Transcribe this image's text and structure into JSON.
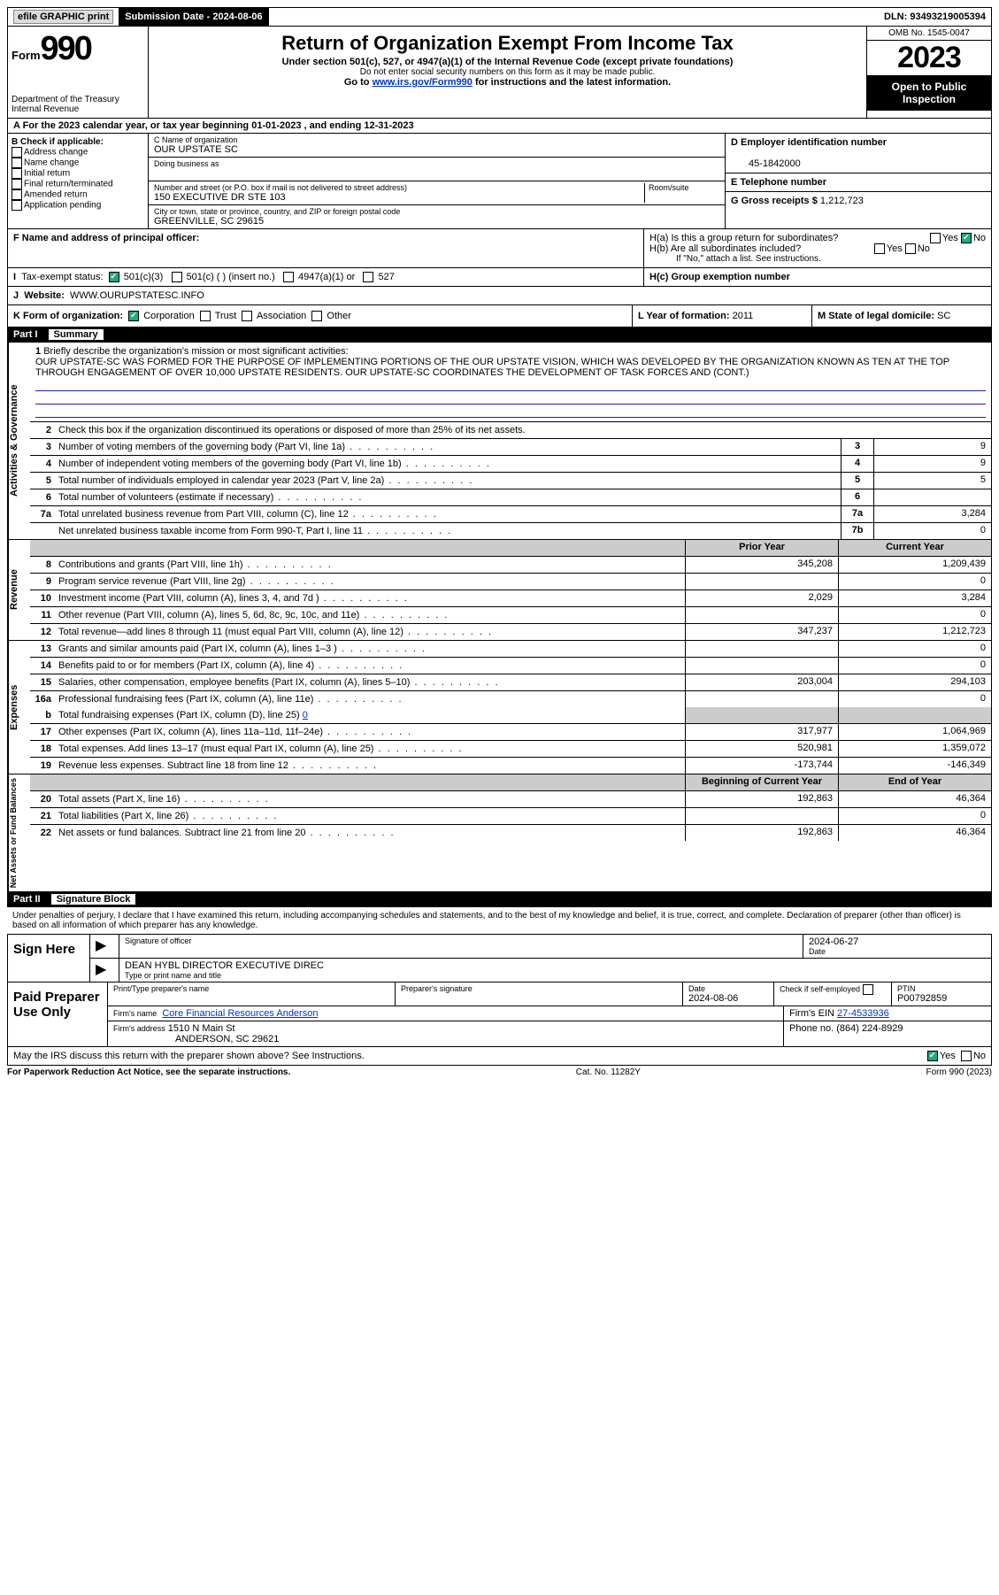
{
  "topbar": {
    "efile": "efile GRAPHIC print",
    "sub_label": "Submission Date -",
    "sub_date": "2024-08-06",
    "dln_label": "DLN:",
    "dln": "93493219005394"
  },
  "header": {
    "form_small": "Form",
    "form_num": "990",
    "dept": "Department of the Treasury",
    "irs": "Internal Revenue",
    "title": "Return of Organization Exempt From Income Tax",
    "sub1": "Under section 501(c), 527, or 4947(a)(1) of the Internal Revenue Code (except private foundations)",
    "sub2": "Do not enter social security numbers on this form as it may be made public.",
    "sub3_pre": "Go to ",
    "sub3_link": "www.irs.gov/Form990",
    "sub3_post": " for instructions and the latest information.",
    "omb": "OMB No. 1545-0047",
    "year": "2023",
    "pub": "Open to Public Inspection"
  },
  "lineA": {
    "label": "A For the 2023 calendar year, or tax year beginning ",
    "begin": "01-01-2023",
    "mid": " , and ending ",
    "end": "12-31-2023"
  },
  "boxB": {
    "title": "B Check if applicable:",
    "opts": [
      "Address change",
      "Name change",
      "Initial return",
      "Final return/terminated",
      "Amended return",
      "Application pending"
    ]
  },
  "boxC": {
    "name_label": "C Name of organization",
    "name": "OUR UPSTATE SC",
    "dba_label": "Doing business as",
    "addr_label": "Number and street (or P.O. box if mail is not delivered to street address)",
    "room_label": "Room/suite",
    "addr": "150 EXECUTIVE DR STE 103",
    "city_label": "City or town, state or province, country, and ZIP or foreign postal code",
    "city": "GREENVILLE, SC  29615"
  },
  "boxD": {
    "label": "D Employer identification number",
    "val": "45-1842000"
  },
  "boxE": {
    "label": "E Telephone number",
    "val": ""
  },
  "boxG": {
    "label": "G Gross receipts $",
    "val": "1,212,723"
  },
  "boxF": {
    "label": "F  Name and address of principal officer:"
  },
  "boxH": {
    "a": "H(a)  Is this a group return for subordinates?",
    "b": "H(b)  Are all subordinates included?",
    "bnote": "If \"No,\" attach a list. See instructions.",
    "c": "H(c)  Group exemption number"
  },
  "yn": {
    "yes": "Yes",
    "no": "No"
  },
  "boxI": {
    "label": "Tax-exempt status:",
    "o1": "501(c)(3)",
    "o2": "501(c) (  ) (insert no.)",
    "o3": "4947(a)(1) or",
    "o4": "527"
  },
  "boxJ": {
    "label": "Website:",
    "val": "WWW.OURUPSTATESC.INFO"
  },
  "boxK": {
    "label": "K Form of organization:",
    "o1": "Corporation",
    "o2": "Trust",
    "o3": "Association",
    "o4": "Other"
  },
  "boxL": {
    "label": "L Year of formation:",
    "val": "2011"
  },
  "boxM": {
    "label": "M State of legal domicile:",
    "val": "SC"
  },
  "part1": {
    "num": "Part I",
    "title": "Summary"
  },
  "q1": {
    "label": "Briefly describe the organization's mission or most significant activities:",
    "text": "OUR UPSTATE-SC WAS FORMED FOR THE PURPOSE OF IMPLEMENTING PORTIONS OF THE OUR UPSTATE VISION, WHICH WAS DEVELOPED BY THE ORGANIZATION KNOWN AS TEN AT THE TOP THROUGH ENGAGEMENT OF OVER 10,000 UPSTATE RESIDENTS. OUR UPSTATE-SC COORDINATES THE DEVELOPMENT OF TASK FORCES AND (CONT.)"
  },
  "q2": "Check this box      if the organization discontinued its operations or disposed of more than 25% of its net assets.",
  "gov_rows": [
    {
      "n": "3",
      "t": "Number of voting members of the governing body (Part VI, line 1a)",
      "cn": "3",
      "v": "9"
    },
    {
      "n": "4",
      "t": "Number of independent voting members of the governing body (Part VI, line 1b)",
      "cn": "4",
      "v": "9"
    },
    {
      "n": "5",
      "t": "Total number of individuals employed in calendar year 2023 (Part V, line 2a)",
      "cn": "5",
      "v": "5"
    },
    {
      "n": "6",
      "t": "Total number of volunteers (estimate if necessary)",
      "cn": "6",
      "v": ""
    },
    {
      "n": "7a",
      "t": "Total unrelated business revenue from Part VIII, column (C), line 12",
      "cn": "7a",
      "v": "3,284"
    },
    {
      "n": "",
      "t": "Net unrelated business taxable income from Form 990-T, Part I, line 11",
      "cn": "7b",
      "v": "0"
    }
  ],
  "col_hdr": {
    "py": "Prior Year",
    "cy": "Current Year"
  },
  "rev_rows": [
    {
      "n": "8",
      "t": "Contributions and grants (Part VIII, line 1h)",
      "py": "345,208",
      "cy": "1,209,439"
    },
    {
      "n": "9",
      "t": "Program service revenue (Part VIII, line 2g)",
      "py": "",
      "cy": "0"
    },
    {
      "n": "10",
      "t": "Investment income (Part VIII, column (A), lines 3, 4, and 7d )",
      "py": "2,029",
      "cy": "3,284"
    },
    {
      "n": "11",
      "t": "Other revenue (Part VIII, column (A), lines 5, 6d, 8c, 9c, 10c, and 11e)",
      "py": "",
      "cy": "0"
    },
    {
      "n": "12",
      "t": "Total revenue—add lines 8 through 11 (must equal Part VIII, column (A), line 12)",
      "py": "347,237",
      "cy": "1,212,723"
    }
  ],
  "exp_rows": [
    {
      "n": "13",
      "t": "Grants and similar amounts paid (Part IX, column (A), lines 1–3 )",
      "py": "",
      "cy": "0"
    },
    {
      "n": "14",
      "t": "Benefits paid to or for members (Part IX, column (A), line 4)",
      "py": "",
      "cy": "0"
    },
    {
      "n": "15",
      "t": "Salaries, other compensation, employee benefits (Part IX, column (A), lines 5–10)",
      "py": "203,004",
      "cy": "294,103"
    },
    {
      "n": "16a",
      "t": "Professional fundraising fees (Part IX, column (A), line 11e)",
      "py": "",
      "cy": "0"
    }
  ],
  "q16b_pre": "Total fundraising expenses (Part IX, column (D), line 25) ",
  "q16b_val": "0",
  "exp_rows2": [
    {
      "n": "17",
      "t": "Other expenses (Part IX, column (A), lines 11a–11d, 11f–24e)",
      "py": "317,977",
      "cy": "1,064,969"
    },
    {
      "n": "18",
      "t": "Total expenses. Add lines 13–17 (must equal Part IX, column (A), line 25)",
      "py": "520,981",
      "cy": "1,359,072"
    },
    {
      "n": "19",
      "t": "Revenue less expenses. Subtract line 18 from line 12",
      "py": "-173,744",
      "cy": "-146,349"
    }
  ],
  "na_hdr": {
    "py": "Beginning of Current Year",
    "cy": "End of Year"
  },
  "na_rows": [
    {
      "n": "20",
      "t": "Total assets (Part X, line 16)",
      "py": "192,863",
      "cy": "46,364"
    },
    {
      "n": "21",
      "t": "Total liabilities (Part X, line 26)",
      "py": "",
      "cy": "0"
    },
    {
      "n": "22",
      "t": "Net assets or fund balances. Subtract line 21 from line 20",
      "py": "192,863",
      "cy": "46,364"
    }
  ],
  "vlabels": {
    "gov": "Activities & Governance",
    "rev": "Revenue",
    "exp": "Expenses",
    "na": "Net Assets or Fund Balances"
  },
  "part2": {
    "num": "Part II",
    "title": "Signature Block"
  },
  "penalty": "Under penalties of perjury, I declare that I have examined this return, including accompanying schedules and statements, and to the best of my knowledge and belief, it is true, correct, and complete. Declaration of preparer (other than officer) is based on all information of which preparer has any knowledge.",
  "sign": {
    "here": "Sign Here",
    "sig_label": "Signature of officer",
    "date_label": "Date",
    "date": "2024-06-27",
    "name": "DEAN HYBL DIRECTOR  EXECUTIVE DIREC",
    "name_label": "Type or print name and title"
  },
  "prep": {
    "here": "Paid Preparer Use Only",
    "name_label": "Print/Type preparer's name",
    "sig_label": "Preparer's signature",
    "date_label": "Date",
    "date": "2024-08-06",
    "check_label": "Check        if self-employed",
    "ptin_label": "PTIN",
    "ptin": "P00792859",
    "firm_name_label": "Firm's name",
    "firm_name": "Core Financial Resources Anderson",
    "firm_ein_label": "Firm's EIN",
    "firm_ein": "27-4533936",
    "firm_addr_label": "Firm's address",
    "firm_addr1": "1510 N Main St",
    "firm_addr2": "ANDERSON, SC  29621",
    "phone_label": "Phone no.",
    "phone": "(864) 224-8929"
  },
  "discuss": "May the IRS discuss this return with the preparer shown above? See Instructions.",
  "footer": {
    "left": "For Paperwork Reduction Act Notice, see the separate instructions.",
    "mid": "Cat. No. 11282Y",
    "right": "Form 990 (2023)"
  }
}
